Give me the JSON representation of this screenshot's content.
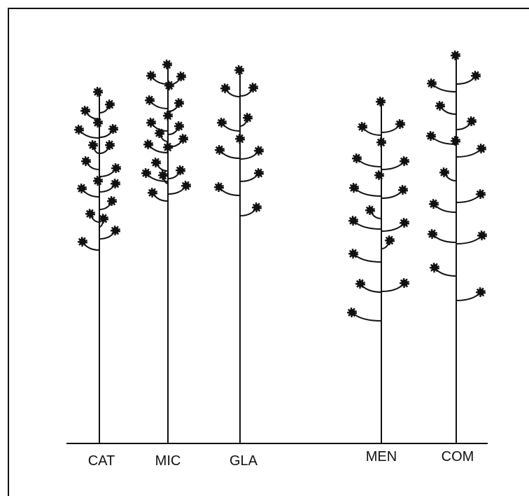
{
  "labels": [
    "CAT",
    "MIC",
    "GLA",
    "MEN",
    "COM"
  ]
}
